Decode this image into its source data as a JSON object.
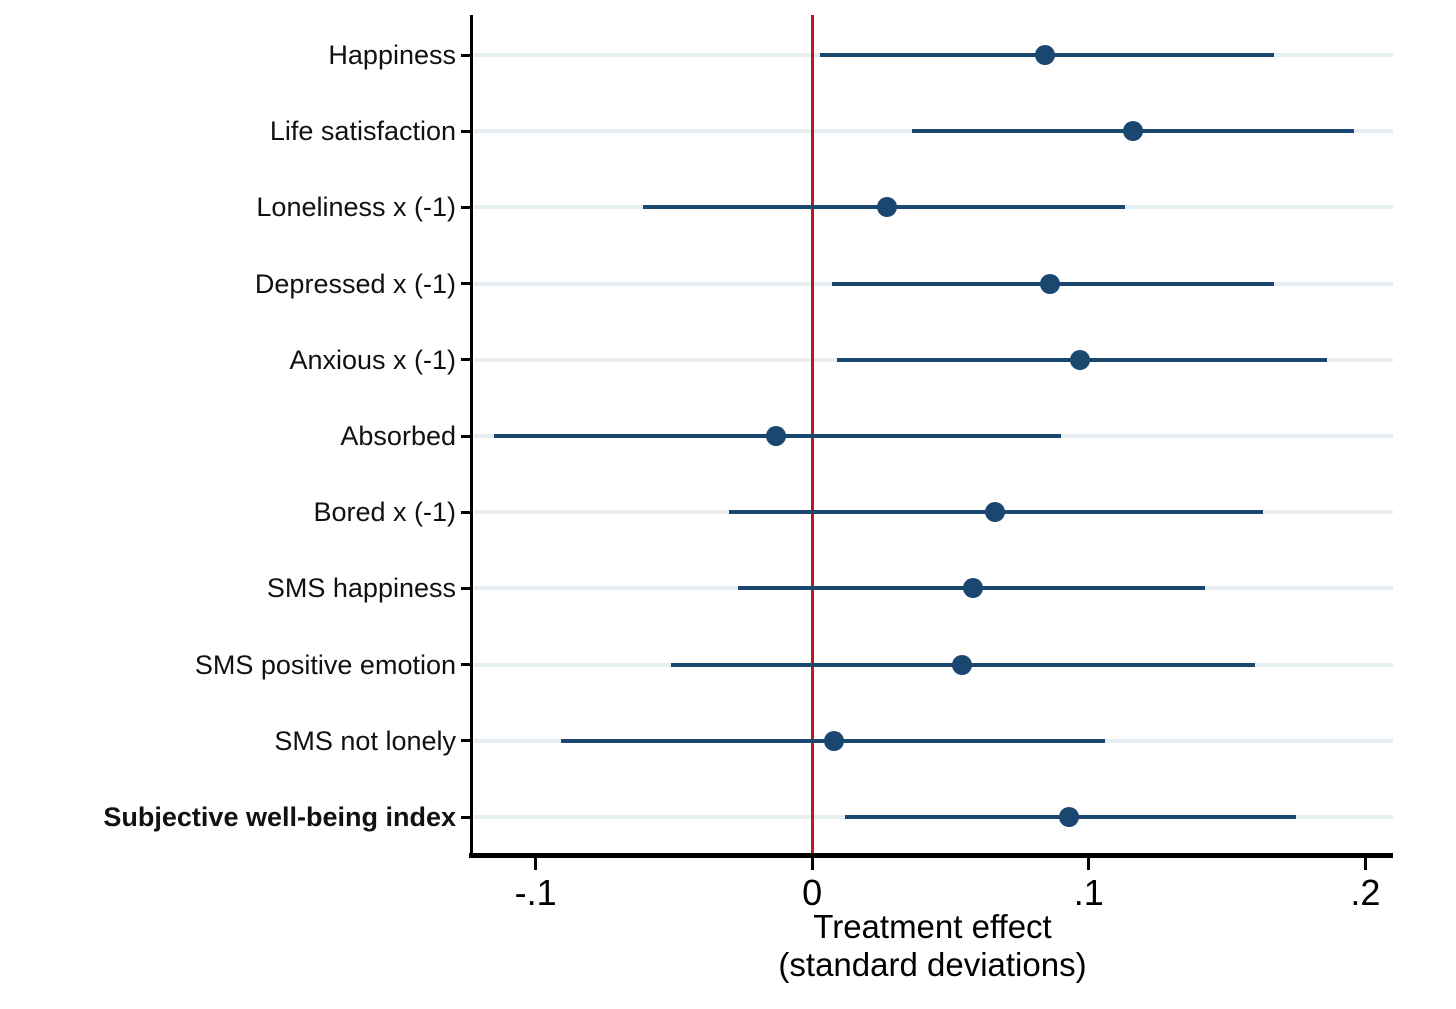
{
  "chart_data": {
    "type": "scatter",
    "subtype": "coefficient-plot-with-error-bars",
    "title": "",
    "xlabel_line1": "Treatment effect",
    "xlabel_line2": "(standard deviations)",
    "ylabel": "",
    "xlim": [
      -0.123,
      0.21
    ],
    "grid": "horizontal-per-category",
    "legend": "none",
    "zero_reference_line": 0,
    "xticks": [
      {
        "value": -0.1,
        "label": "-.1"
      },
      {
        "value": 0,
        "label": "0"
      },
      {
        "value": 0.1,
        "label": ".1"
      },
      {
        "value": 0.2,
        "label": ".2"
      }
    ],
    "rows": [
      {
        "label": "Happiness",
        "estimate": 0.084,
        "ci_low": 0.003,
        "ci_high": 0.167,
        "bold": false
      },
      {
        "label": "Life satisfaction",
        "estimate": 0.116,
        "ci_low": 0.036,
        "ci_high": 0.196,
        "bold": false
      },
      {
        "label": "Loneliness x (-1)",
        "estimate": 0.027,
        "ci_low": -0.061,
        "ci_high": 0.113,
        "bold": false
      },
      {
        "label": "Depressed x (-1)",
        "estimate": 0.086,
        "ci_low": 0.007,
        "ci_high": 0.167,
        "bold": false
      },
      {
        "label": "Anxious x (-1)",
        "estimate": 0.097,
        "ci_low": 0.009,
        "ci_high": 0.186,
        "bold": false
      },
      {
        "label": "Absorbed",
        "estimate": -0.013,
        "ci_low": -0.115,
        "ci_high": 0.09,
        "bold": false
      },
      {
        "label": "Bored x (-1)",
        "estimate": 0.066,
        "ci_low": -0.03,
        "ci_high": 0.163,
        "bold": false
      },
      {
        "label": "SMS happiness",
        "estimate": 0.058,
        "ci_low": -0.027,
        "ci_high": 0.142,
        "bold": false
      },
      {
        "label": "SMS positive emotion",
        "estimate": 0.054,
        "ci_low": -0.051,
        "ci_high": 0.16,
        "bold": false
      },
      {
        "label": "SMS not lonely",
        "estimate": 0.008,
        "ci_low": -0.091,
        "ci_high": 0.106,
        "bold": false
      },
      {
        "label": "Subjective well-being index",
        "estimate": 0.093,
        "ci_low": 0.012,
        "ci_high": 0.175,
        "bold": true
      }
    ],
    "colors": {
      "marker": "#1a476f",
      "ci_line": "#1a476f",
      "zero_line": "#c11425",
      "gridline": "#e8eff2",
      "axis": "#000000",
      "background": "#ffffff"
    }
  }
}
